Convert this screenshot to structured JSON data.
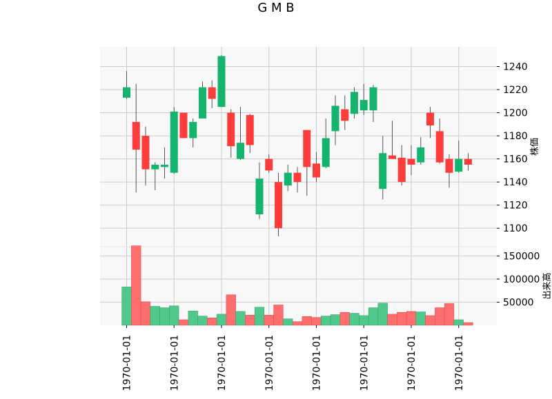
{
  "chart_data": {
    "type": "candlestick",
    "title": "G M B",
    "price_axis_label": "株価",
    "volume_axis_label": "出来高",
    "price_ticks": [
      1100,
      1120,
      1140,
      1160,
      1180,
      1200,
      1220,
      1240
    ],
    "price_ylim": [
      1084,
      1257
    ],
    "volume_ticks": [
      50000,
      100000,
      150000
    ],
    "volume_tick_labels": [
      "50000",
      "100000",
      "150000"
    ],
    "volume_ylim": [
      0,
      170000
    ],
    "x_tick_label": "1970-01-01",
    "x_tick_indices": [
      0,
      5,
      10,
      15,
      20,
      25,
      30,
      35
    ],
    "colors": {
      "up": "#14b46e",
      "down": "#ff3c3c",
      "up_volume": "#50c88c",
      "down_volume": "#ff6e6e",
      "wick": "#555555",
      "grid": "#cccccc",
      "plot_bg": "#f8f8f8"
    },
    "candles": [
      {
        "open": 1213,
        "high": 1236,
        "low": 1212,
        "close": 1222,
        "volume": 83000
      },
      {
        "open": 1192,
        "high": 1225,
        "low": 1131,
        "close": 1168,
        "volume": 172000
      },
      {
        "open": 1180,
        "high": 1188,
        "low": 1137,
        "close": 1151,
        "volume": 51000
      },
      {
        "open": 1151,
        "high": 1157,
        "low": 1133,
        "close": 1155,
        "volume": 41000
      },
      {
        "open": 1153,
        "high": 1170,
        "low": 1143,
        "close": 1155,
        "volume": 38000
      },
      {
        "open": 1148,
        "high": 1205,
        "low": 1147,
        "close": 1201,
        "volume": 42000
      },
      {
        "open": 1200,
        "high": 1200,
        "low": 1178,
        "close": 1178,
        "volume": 12000
      },
      {
        "open": 1178,
        "high": 1195,
        "low": 1170,
        "close": 1192,
        "volume": 31000
      },
      {
        "open": 1195,
        "high": 1227,
        "low": 1195,
        "close": 1222,
        "volume": 20000
      },
      {
        "open": 1222,
        "high": 1228,
        "low": 1204,
        "close": 1212,
        "volume": 16000
      },
      {
        "open": 1205,
        "high": 1250,
        "low": 1205,
        "close": 1249,
        "volume": 24000
      },
      {
        "open": 1200,
        "high": 1203,
        "low": 1161,
        "close": 1171,
        "volume": 66000
      },
      {
        "open": 1160,
        "high": 1205,
        "low": 1159,
        "close": 1174,
        "volume": 30000
      },
      {
        "open": 1198,
        "high": 1199,
        "low": 1165,
        "close": 1172,
        "volume": 22000
      },
      {
        "open": 1112,
        "high": 1157,
        "low": 1108,
        "close": 1143,
        "volume": 39000
      },
      {
        "open": 1160,
        "high": 1164,
        "low": 1148,
        "close": 1150,
        "volume": 22000
      },
      {
        "open": 1140,
        "high": 1148,
        "low": 1093,
        "close": 1100,
        "volume": 44000
      },
      {
        "open": 1137,
        "high": 1155,
        "low": 1132,
        "close": 1148,
        "volume": 14000
      },
      {
        "open": 1148,
        "high": 1153,
        "low": 1131,
        "close": 1140,
        "volume": 8000
      },
      {
        "open": 1185,
        "high": 1185,
        "low": 1128,
        "close": 1153,
        "volume": 19000
      },
      {
        "open": 1156,
        "high": 1166,
        "low": 1140,
        "close": 1144,
        "volume": 17000
      },
      {
        "open": 1153,
        "high": 1195,
        "low": 1152,
        "close": 1178,
        "volume": 20000
      },
      {
        "open": 1184,
        "high": 1215,
        "low": 1172,
        "close": 1206,
        "volume": 23000
      },
      {
        "open": 1203,
        "high": 1215,
        "low": 1185,
        "close": 1193,
        "volume": 28000
      },
      {
        "open": 1199,
        "high": 1222,
        "low": 1195,
        "close": 1218,
        "volume": 26000
      },
      {
        "open": 1202,
        "high": 1225,
        "low": 1198,
        "close": 1211,
        "volume": 21000
      },
      {
        "open": 1202,
        "high": 1224,
        "low": 1192,
        "close": 1222,
        "volume": 38000
      },
      {
        "open": 1134,
        "high": 1180,
        "low": 1125,
        "close": 1165,
        "volume": 48000
      },
      {
        "open": 1163,
        "high": 1193,
        "low": 1160,
        "close": 1160,
        "volume": 24000
      },
      {
        "open": 1161,
        "high": 1172,
        "low": 1137,
        "close": 1140,
        "volume": 28000
      },
      {
        "open": 1160,
        "high": 1172,
        "low": 1146,
        "close": 1155,
        "volume": 30000
      },
      {
        "open": 1157,
        "high": 1179,
        "low": 1155,
        "close": 1170,
        "volume": 29000
      },
      {
        "open": 1200,
        "high": 1205,
        "low": 1178,
        "close": 1189,
        "volume": 21000
      },
      {
        "open": 1184,
        "high": 1195,
        "low": 1156,
        "close": 1157,
        "volume": 38000
      },
      {
        "open": 1160,
        "high": 1164,
        "low": 1135,
        "close": 1148,
        "volume": 47000
      },
      {
        "open": 1149,
        "high": 1176,
        "low": 1148,
        "close": 1160,
        "volume": 12000
      },
      {
        "open": 1160,
        "high": 1165,
        "low": 1150,
        "close": 1155,
        "volume": 6000
      }
    ]
  }
}
